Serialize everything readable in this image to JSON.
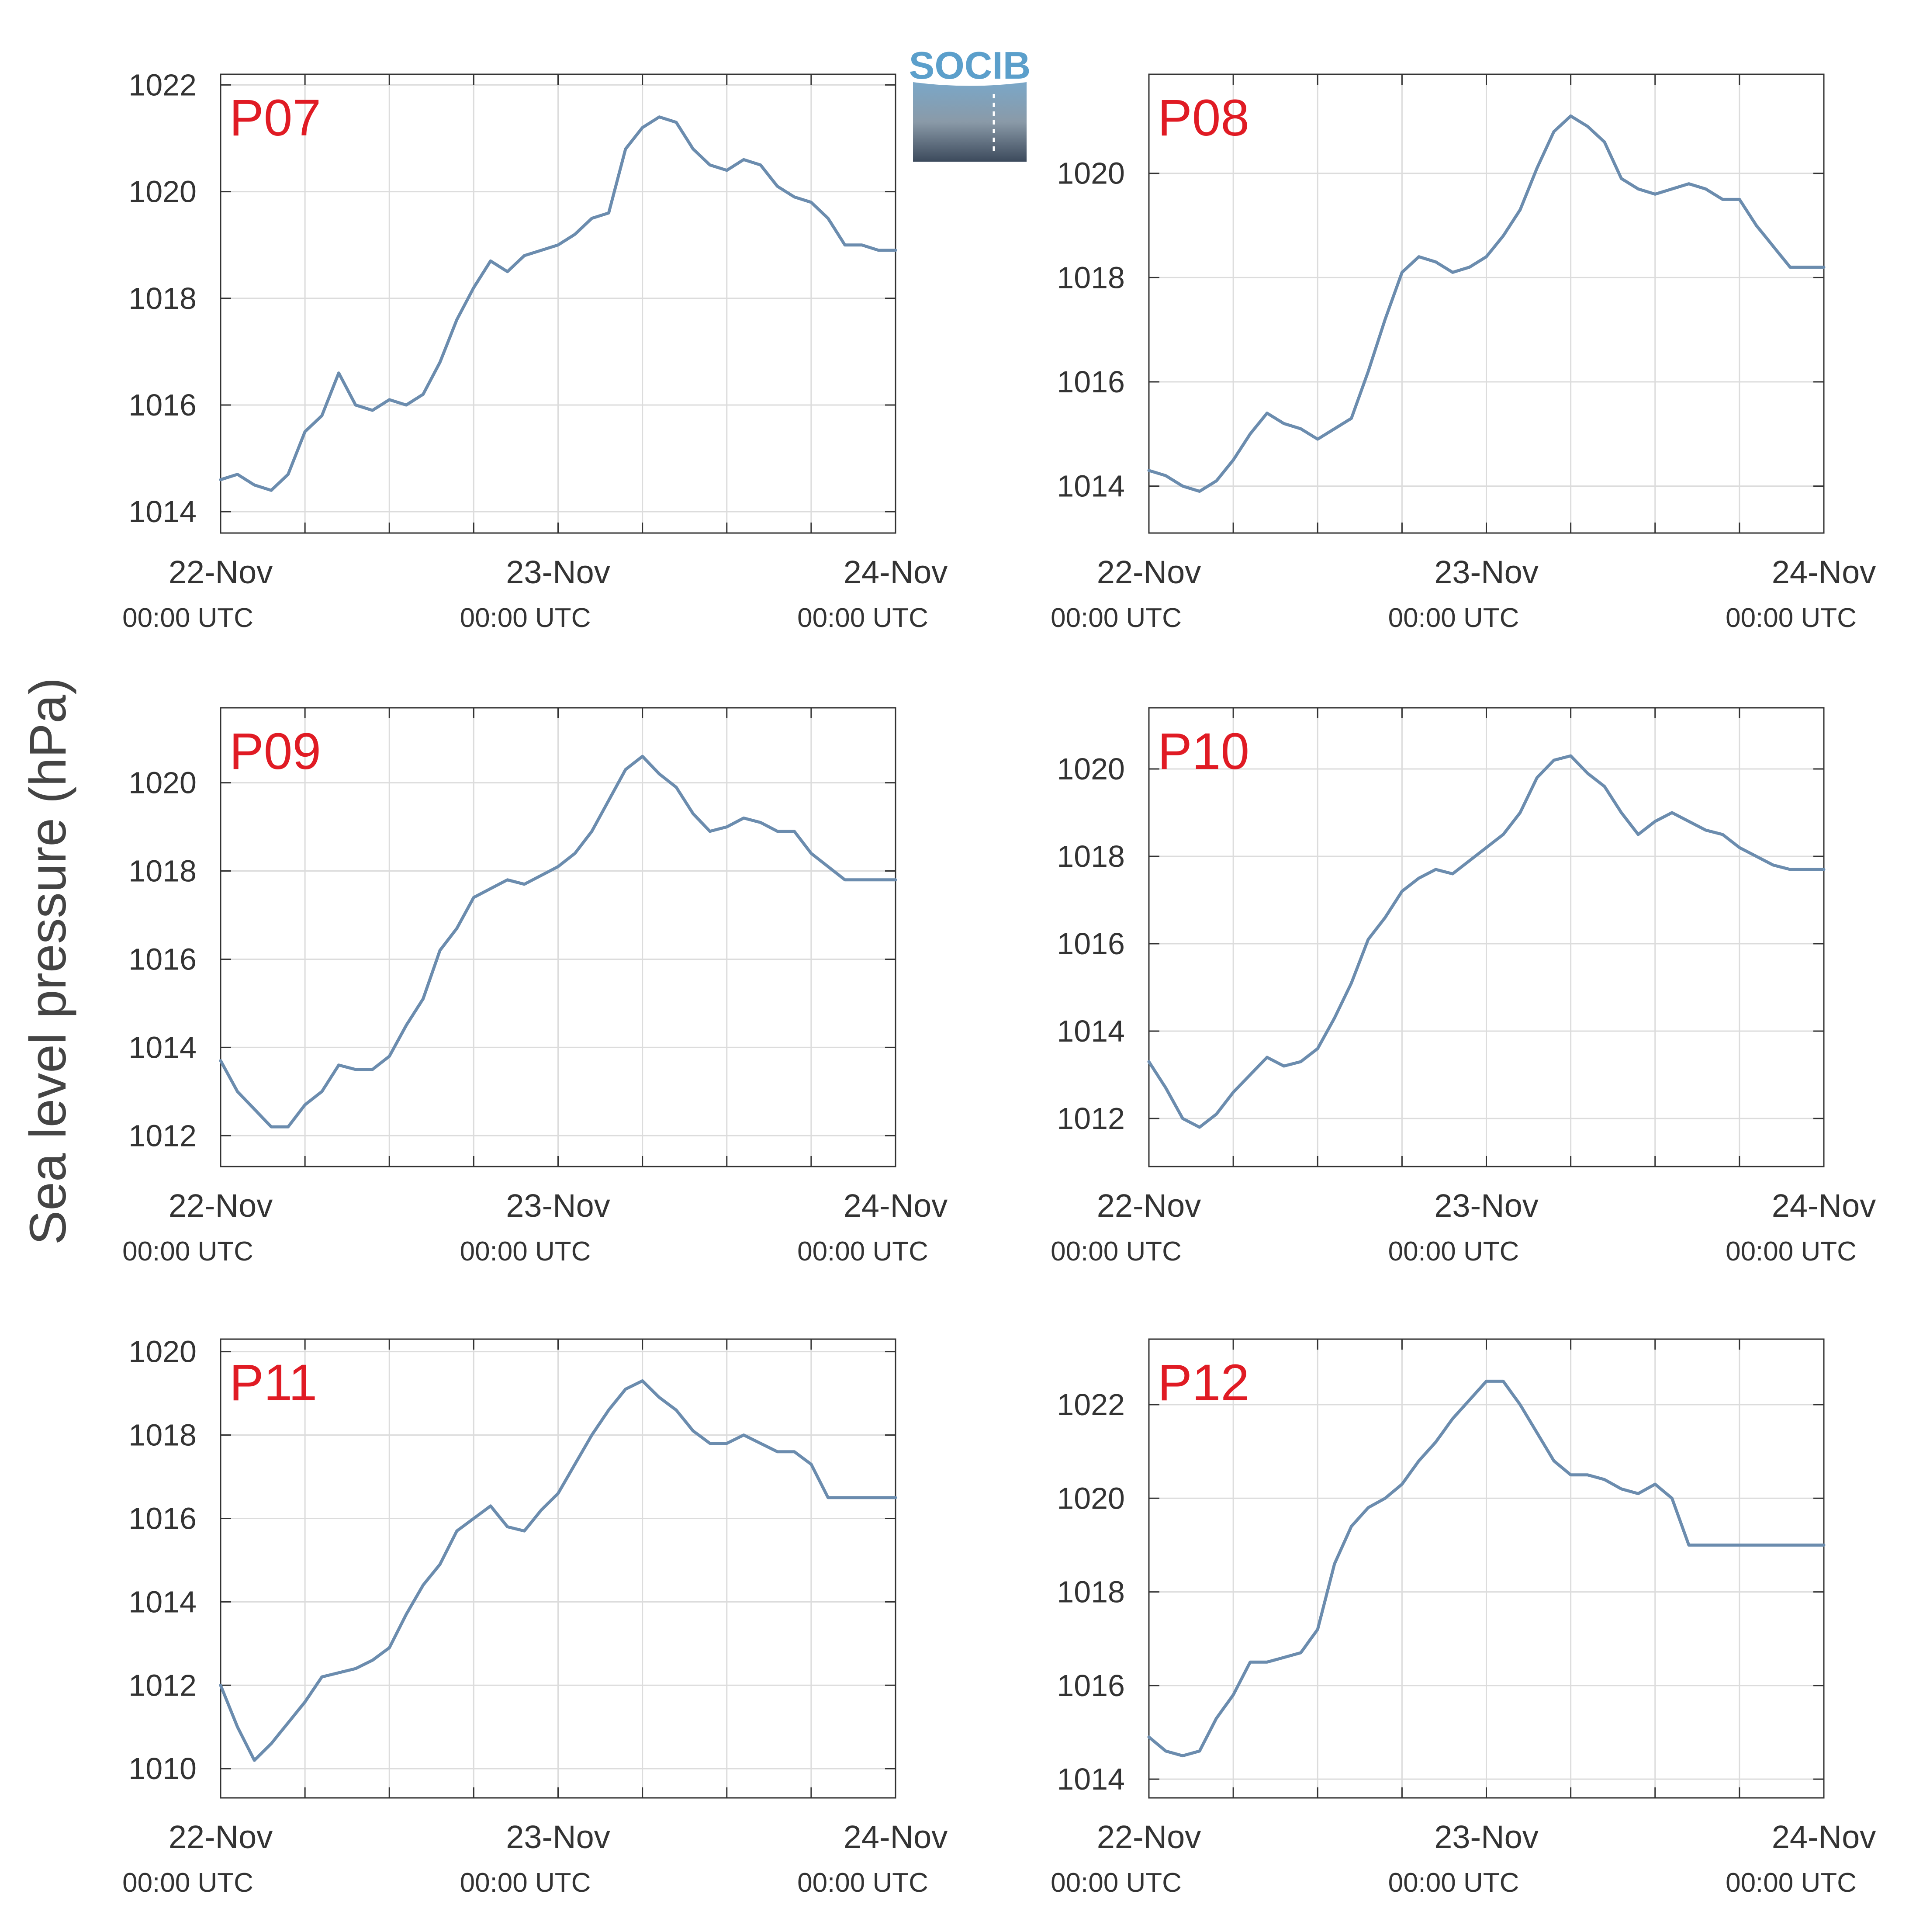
{
  "figure": {
    "ylabel": "Sea level pressure (hPa)",
    "logo_text": "SOCIB",
    "line_color": "#6b8cae",
    "label_color": "#e01b24"
  },
  "chart_data": [
    {
      "type": "line",
      "label": "P07",
      "x": [
        0,
        0.05,
        0.1,
        0.15,
        0.2,
        0.25,
        0.3,
        0.35,
        0.4,
        0.45,
        0.5,
        0.55,
        0.6,
        0.65,
        0.7,
        0.75,
        0.8,
        0.85,
        0.9,
        0.95,
        1,
        1.05,
        1.1,
        1.15,
        1.2,
        1.25,
        1.3,
        1.35,
        1.4,
        1.45,
        1.5,
        1.55,
        1.6,
        1.65,
        1.7,
        1.75,
        1.8,
        1.85,
        1.9,
        1.95,
        2
      ],
      "y": [
        1014.6,
        1014.7,
        1014.5,
        1014.4,
        1014.7,
        1015.5,
        1015.8,
        1016.6,
        1016.0,
        1015.9,
        1016.1,
        1016.0,
        1016.2,
        1016.8,
        1017.6,
        1018.2,
        1018.7,
        1018.5,
        1018.8,
        1018.9,
        1019.0,
        1019.2,
        1019.5,
        1019.6,
        1020.8,
        1021.2,
        1021.4,
        1021.3,
        1020.8,
        1020.5,
        1020.4,
        1020.6,
        1020.5,
        1020.1,
        1019.9,
        1019.8,
        1019.5,
        1019.0,
        1019.0,
        1018.9,
        1018.9
      ],
      "ylim": [
        1013.6,
        1022.2
      ],
      "yticks": [
        1014,
        1016,
        1018,
        1020,
        1022
      ]
    },
    {
      "type": "line",
      "label": "P08",
      "x": [
        0,
        0.05,
        0.1,
        0.15,
        0.2,
        0.25,
        0.3,
        0.35,
        0.4,
        0.45,
        0.5,
        0.55,
        0.6,
        0.65,
        0.7,
        0.75,
        0.8,
        0.85,
        0.9,
        0.95,
        1,
        1.05,
        1.1,
        1.15,
        1.2,
        1.25,
        1.3,
        1.35,
        1.4,
        1.45,
        1.5,
        1.55,
        1.6,
        1.65,
        1.7,
        1.75,
        1.8,
        1.85,
        1.9,
        1.95,
        2
      ],
      "y": [
        1014.3,
        1014.2,
        1014.0,
        1013.9,
        1014.1,
        1014.5,
        1015.0,
        1015.4,
        1015.2,
        1015.1,
        1014.9,
        1015.1,
        1015.3,
        1016.2,
        1017.2,
        1018.1,
        1018.4,
        1018.3,
        1018.1,
        1018.2,
        1018.4,
        1018.8,
        1019.3,
        1020.1,
        1020.8,
        1021.1,
        1020.9,
        1020.6,
        1019.9,
        1019.7,
        1019.6,
        1019.7,
        1019.8,
        1019.7,
        1019.5,
        1019.5,
        1019.0,
        1018.6,
        1018.2,
        1018.2,
        1018.2
      ],
      "ylim": [
        1013.1,
        1021.9
      ],
      "yticks": [
        1014,
        1016,
        1018,
        1020
      ]
    },
    {
      "type": "line",
      "label": "P09",
      "x": [
        0,
        0.05,
        0.1,
        0.15,
        0.2,
        0.25,
        0.3,
        0.35,
        0.4,
        0.45,
        0.5,
        0.55,
        0.6,
        0.65,
        0.7,
        0.75,
        0.8,
        0.85,
        0.9,
        0.95,
        1,
        1.05,
        1.1,
        1.15,
        1.2,
        1.25,
        1.3,
        1.35,
        1.4,
        1.45,
        1.5,
        1.55,
        1.6,
        1.65,
        1.7,
        1.75,
        1.8,
        1.85,
        1.9,
        1.95,
        2
      ],
      "y": [
        1013.7,
        1013.0,
        1012.6,
        1012.2,
        1012.2,
        1012.7,
        1013.0,
        1013.6,
        1013.5,
        1013.5,
        1013.8,
        1014.5,
        1015.1,
        1016.2,
        1016.7,
        1017.4,
        1017.6,
        1017.8,
        1017.7,
        1017.9,
        1018.1,
        1018.4,
        1018.9,
        1019.6,
        1020.3,
        1020.6,
        1020.2,
        1019.9,
        1019.3,
        1018.9,
        1019.0,
        1019.2,
        1019.1,
        1018.9,
        1018.9,
        1018.4,
        1018.1,
        1017.8,
        1017.8,
        1017.8,
        1017.8
      ],
      "ylim": [
        1011.3,
        1021.7
      ],
      "yticks": [
        1012,
        1014,
        1016,
        1018,
        1020
      ]
    },
    {
      "type": "line",
      "label": "P10",
      "x": [
        0,
        0.05,
        0.1,
        0.15,
        0.2,
        0.25,
        0.3,
        0.35,
        0.4,
        0.45,
        0.5,
        0.55,
        0.6,
        0.65,
        0.7,
        0.75,
        0.8,
        0.85,
        0.9,
        0.95,
        1,
        1.05,
        1.1,
        1.15,
        1.2,
        1.25,
        1.3,
        1.35,
        1.4,
        1.45,
        1.5,
        1.55,
        1.6,
        1.65,
        1.7,
        1.75,
        1.8,
        1.85,
        1.9,
        1.95,
        2
      ],
      "y": [
        1013.3,
        1012.7,
        1012.0,
        1011.8,
        1012.1,
        1012.6,
        1013.0,
        1013.4,
        1013.2,
        1013.3,
        1013.6,
        1014.3,
        1015.1,
        1016.1,
        1016.6,
        1017.2,
        1017.5,
        1017.7,
        1017.6,
        1017.9,
        1018.2,
        1018.5,
        1019.0,
        1019.8,
        1020.2,
        1020.3,
        1019.9,
        1019.6,
        1019.0,
        1018.5,
        1018.8,
        1019.0,
        1018.8,
        1018.6,
        1018.5,
        1018.2,
        1018.0,
        1017.8,
        1017.7,
        1017.7,
        1017.7
      ],
      "ylim": [
        1010.9,
        1021.4
      ],
      "yticks": [
        1012,
        1014,
        1016,
        1018,
        1020
      ]
    },
    {
      "type": "line",
      "label": "P11",
      "x": [
        0,
        0.05,
        0.1,
        0.15,
        0.2,
        0.25,
        0.3,
        0.35,
        0.4,
        0.45,
        0.5,
        0.55,
        0.6,
        0.65,
        0.7,
        0.75,
        0.8,
        0.85,
        0.9,
        0.95,
        1,
        1.05,
        1.1,
        1.15,
        1.2,
        1.25,
        1.3,
        1.35,
        1.4,
        1.45,
        1.5,
        1.55,
        1.6,
        1.65,
        1.7,
        1.75,
        1.8,
        1.85,
        1.9,
        1.95,
        2
      ],
      "y": [
        1012.0,
        1011.0,
        1010.2,
        1010.6,
        1011.1,
        1011.6,
        1012.2,
        1012.3,
        1012.4,
        1012.6,
        1012.9,
        1013.7,
        1014.4,
        1014.9,
        1015.7,
        1016.0,
        1016.3,
        1015.8,
        1015.7,
        1016.2,
        1016.6,
        1017.3,
        1018.0,
        1018.6,
        1019.1,
        1019.3,
        1018.9,
        1018.6,
        1018.1,
        1017.8,
        1017.8,
        1018.0,
        1017.8,
        1017.6,
        1017.6,
        1017.3,
        1016.5,
        1016.5,
        1016.5,
        1016.5,
        1016.5
      ],
      "ylim": [
        1009.3,
        1020.3
      ],
      "yticks": [
        1010,
        1012,
        1014,
        1016,
        1018,
        1020
      ]
    },
    {
      "type": "line",
      "label": "P12",
      "x": [
        0,
        0.05,
        0.1,
        0.15,
        0.2,
        0.25,
        0.3,
        0.35,
        0.4,
        0.45,
        0.5,
        0.55,
        0.6,
        0.65,
        0.7,
        0.75,
        0.8,
        0.85,
        0.9,
        0.95,
        1,
        1.05,
        1.1,
        1.15,
        1.2,
        1.25,
        1.3,
        1.35,
        1.4,
        1.45,
        1.5,
        1.55,
        1.6,
        1.65,
        1.7,
        1.75,
        1.8,
        1.85,
        1.9,
        1.95,
        2
      ],
      "y": [
        1014.9,
        1014.6,
        1014.5,
        1014.6,
        1015.3,
        1015.8,
        1016.5,
        1016.5,
        1016.6,
        1016.7,
        1017.2,
        1018.6,
        1019.4,
        1019.8,
        1020.0,
        1020.3,
        1020.8,
        1021.2,
        1021.7,
        1022.1,
        1022.5,
        1022.5,
        1022.0,
        1021.4,
        1020.8,
        1020.5,
        1020.5,
        1020.4,
        1020.2,
        1020.1,
        1020.3,
        1020.0,
        1019.0,
        1019.0,
        1019.0,
        1019.0,
        1019.0,
        1019.0,
        1019.0,
        1019.0,
        1019.0
      ],
      "ylim": [
        1013.6,
        1023.4
      ],
      "yticks": [
        1014,
        1016,
        1018,
        1020,
        1022
      ]
    }
  ],
  "x_axis": {
    "ticks": [
      0,
      1,
      2
    ],
    "date_labels": [
      "22-Nov",
      "23-Nov",
      "24-Nov"
    ],
    "time_labels": [
      "00:00 UTC",
      "00:00 UTC",
      "00:00 UTC"
    ],
    "minor_step": 0.25
  }
}
